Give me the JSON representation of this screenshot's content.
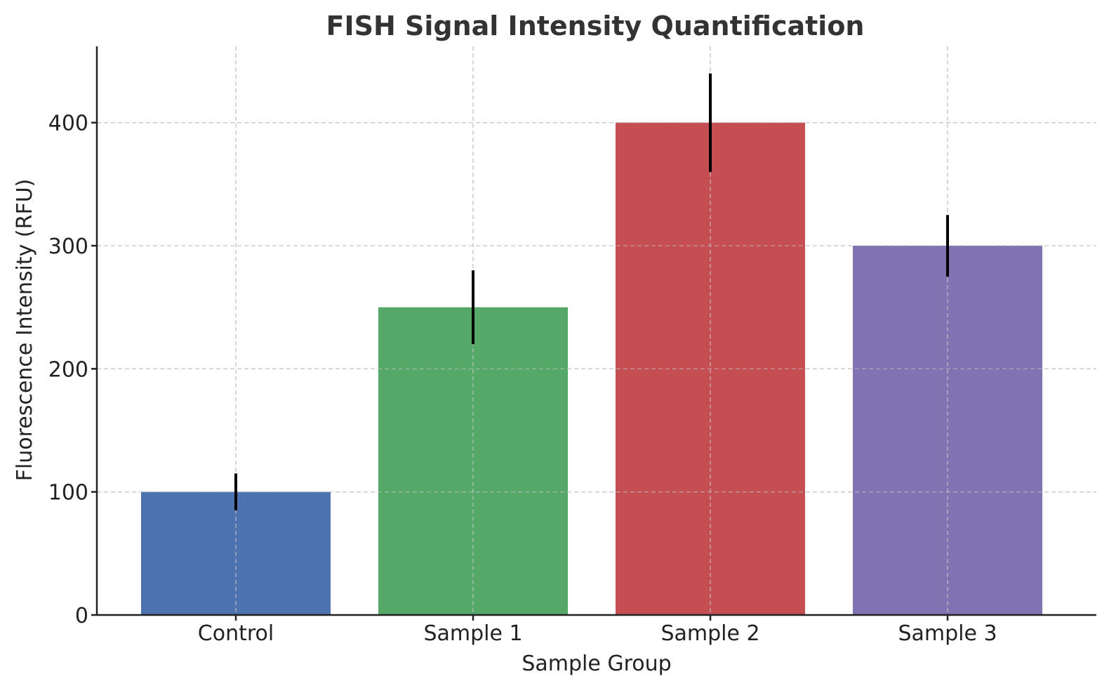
{
  "chart_data": {
    "type": "bar",
    "title": "FISH Signal Intensity Quantification",
    "xlabel": "Sample Group",
    "ylabel": "Fluorescence Intensity (RFU)",
    "categories": [
      "Control",
      "Sample 1",
      "Sample 2",
      "Sample 3"
    ],
    "values": [
      100,
      250,
      400,
      300
    ],
    "errors": [
      15,
      30,
      40,
      25
    ],
    "colors": [
      "#4c72b0",
      "#55a868",
      "#c44e52",
      "#8172b2"
    ],
    "ylim": [
      0,
      462
    ],
    "yticks": [
      0,
      100,
      200,
      300,
      400
    ],
    "grid": true,
    "legend": "none"
  }
}
